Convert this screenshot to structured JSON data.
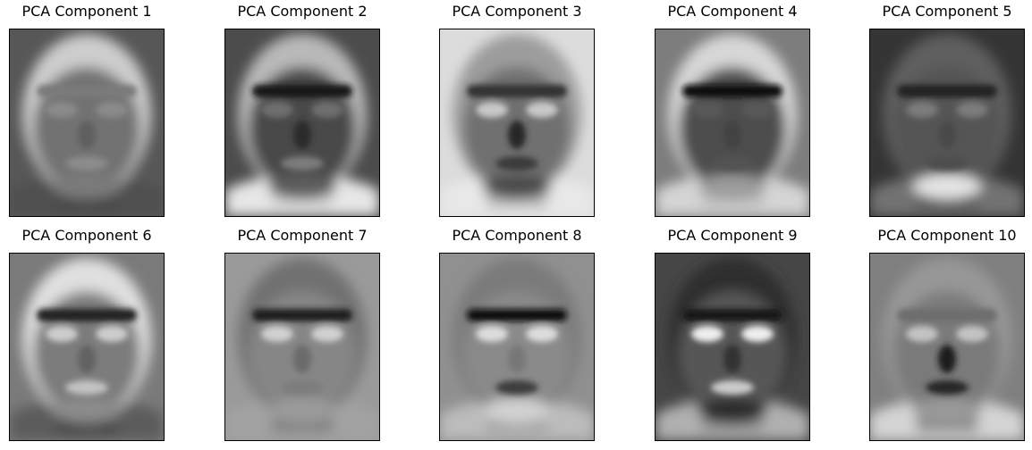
{
  "figure": {
    "colormap": "gray",
    "components": [
      {
        "title": "PCA Component 1",
        "bg": "#575757",
        "hair": "#cdcdcd",
        "face": "#727272",
        "eyes": "#8a8a8a",
        "brow": "#7a7a7a",
        "nose": "#5e5e5e",
        "mouth": "#8c8c8c",
        "chin": "#7b7b7b",
        "neck": "#444444",
        "shoulders": "#505050"
      },
      {
        "title": "PCA Component 2",
        "bg": "#4c4c4c",
        "hair": "#b9b9b9",
        "face": "#4a4a4a",
        "eyes": "#6e6e6e",
        "brow": "#161616",
        "nose": "#2a2a2a",
        "mouth": "#7c7c7c",
        "chin": "#5d5d5d",
        "neck": "#cfcfcf",
        "shoulders": "#e6e6e6"
      },
      {
        "title": "PCA Component 3",
        "bg": "#dcdcdc",
        "hair": "#9c9c9c",
        "face": "#6f6f6f",
        "eyes": "#c7c7c7",
        "brow": "#333333",
        "nose": "#272727",
        "mouth": "#3a3a3a",
        "chin": "#4c4c4c",
        "neck": "#b9b9b9",
        "shoulders": "#e8e8e8"
      },
      {
        "title": "PCA Component 4",
        "bg": "#7d7d7d",
        "hair": "#d7d7d7",
        "face": "#4d4d4d",
        "eyes": "#585858",
        "brow": "#101010",
        "nose": "#434343",
        "mouth": "#535353",
        "chin": "#9b9b9b",
        "neck": "#bfbfbf",
        "shoulders": "#d4d4d4"
      },
      {
        "title": "PCA Component 5",
        "bg": "#353535",
        "hair": "#5e5e5e",
        "face": "#555555",
        "eyes": "#7b7b7b",
        "brow": "#202020",
        "nose": "#4a4a4a",
        "mouth": "#4e4e4e",
        "chin": "#e5e5e5",
        "neck": "#505050",
        "shoulders": "#727272"
      },
      {
        "title": "PCA Component 6",
        "bg": "#7a7a7a",
        "hair": "#e0e0e0",
        "face": "#7c7c7c",
        "eyes": "#cdcdcd",
        "brow": "#222222",
        "nose": "#626262",
        "mouth": "#c3c3c3",
        "chin": "#8c8c8c",
        "neck": "#424242",
        "shoulders": "#5c5c5c"
      },
      {
        "title": "PCA Component 7",
        "bg": "#9a9a9a",
        "hair": "#717171",
        "face": "#868686",
        "eyes": "#d0d0d0",
        "brow": "#1d1d1d",
        "nose": "#6a6a6a",
        "mouth": "#7d7d7d",
        "chin": "#9b9b9b",
        "neck": "#7f7f7f",
        "shoulders": "#a3a3a3"
      },
      {
        "title": "PCA Component 8",
        "bg": "#909090",
        "hair": "#7a7a7a",
        "face": "#8a8a8a",
        "eyes": "#dddddd",
        "brow": "#111111",
        "nose": "#777777",
        "mouth": "#3d3d3d",
        "chin": "#d2d2d2",
        "neck": "#a2a2a2",
        "shoulders": "#bcbcbc"
      },
      {
        "title": "PCA Component 9",
        "bg": "#464646",
        "hair": "#2d2d2d",
        "face": "#575757",
        "eyes": "#eeeeee",
        "brow": "#141414",
        "nose": "#313131",
        "mouth": "#cbcbcb",
        "chin": "#2c2c2c",
        "neck": "#8f8f8f",
        "shoulders": "#b0b0b0"
      },
      {
        "title": "PCA Component 10",
        "bg": "#808080",
        "hair": "#979797",
        "face": "#7a7a7a",
        "eyes": "#c3c3c3",
        "brow": "#6d6d6d",
        "nose": "#1f1f1f",
        "mouth": "#262626",
        "chin": "#9a9a9a",
        "neck": "#8a8a8a",
        "shoulders": "#d4d4d4"
      }
    ]
  }
}
